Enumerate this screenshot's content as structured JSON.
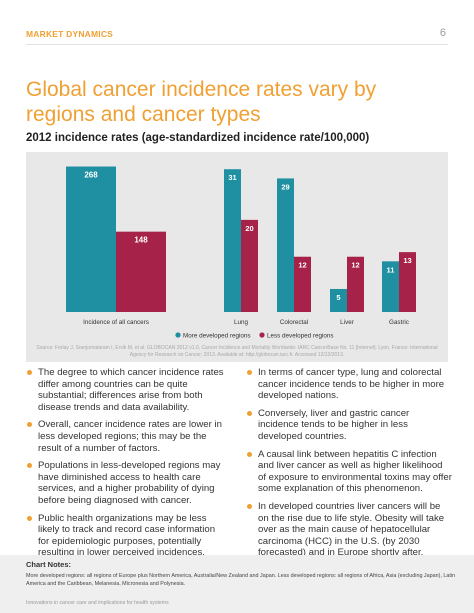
{
  "header": {
    "section_label": "MARKET DYNAMICS",
    "page_number": "6"
  },
  "title": "Global cancer incidence rates vary by regions and cancer types",
  "chart_heading": "2012 incidence rates (age-standardized incidence rate/100,000)",
  "colors": {
    "accent": "#f0a033",
    "more_developed": "#1f8fa2",
    "less_developed": "#a62249",
    "panel_bg": "#e8e8e8"
  },
  "chart_data": [
    {
      "type": "bar",
      "categories": [
        "Incidence of all cancers"
      ],
      "series": [
        {
          "name": "More developed regions",
          "values": [
            268
          ]
        },
        {
          "name": "Less developed regions",
          "values": [
            148
          ]
        }
      ],
      "ylim": [
        0,
        280
      ],
      "grid": false,
      "legend": "bottom"
    },
    {
      "type": "bar",
      "categories": [
        "Lung",
        "Colorectal",
        "Liver",
        "Gastric"
      ],
      "series": [
        {
          "name": "More developed regions",
          "values": [
            31,
            29,
            5,
            11
          ]
        },
        {
          "name": "Less developed regions",
          "values": [
            20,
            12,
            12,
            13
          ]
        }
      ],
      "ylim": [
        0,
        33
      ],
      "grid": false,
      "legend": "bottom"
    }
  ],
  "legend": {
    "more": "More developed regions",
    "less": "Less developed regions"
  },
  "source": "Source: Ferlay J, Soerjomataram I, Ervik M, et al. GLOBOCAN 2012 v1.0, Cancer Incidence and Mortality Worldwide: IARC CancerBase No. 11 [Internet]. Lyon, France: International Agency for Research on Cancer; 2013. Available at: http://globocan.iarc.fr. Accessed 12/13/2013.",
  "bullets_left": [
    "The degree to which cancer incidence rates differ among countries can be quite substantial; differences arise from both disease trends and data availability.",
    "Overall, cancer incidence rates are lower in less developed regions; this may be the result of a number of factors.",
    "Populations in less-developed regions may have diminished access to health care services, and a higher probability of dying before being diagnosed with cancer.",
    "Public health organizations may be less likely to track and record case information for epidemiologic purposes, potentially resulting in lower perceived incidences."
  ],
  "bullets_right": [
    "In terms of cancer type, lung and colorectal cancer incidence tends to be higher in more developed nations.",
    "Conversely, liver and gastric cancer incidence tends to be higher in less developed countries.",
    "A causal link between hepatitis C infection and liver cancer as well as higher likelihood of exposure to environmental toxins may offer some explanation of this phenomenon.",
    "In developed countries liver cancers will be on the rise due to life style. Obesity will take over as the main cause of hepatocellular carcinoma (HCC) in the U.S. (by 2030 forecasted) and in Europe shortly after."
  ],
  "chart_notes": {
    "title": "Chart Notes:",
    "text": "More developed regions: all regions of Europe plus Northern America, Australia/New Zealand and Japan. Less developed regions: all regions of Africa, Asia (excluding Japan), Latin America and the Caribbean, Melanesia, Micronesia and Polynesia."
  },
  "footer": "Innovations in cancer care and implications for health systems"
}
